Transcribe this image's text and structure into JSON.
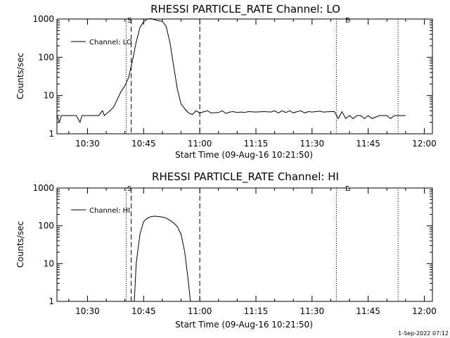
{
  "chart_data": [
    {
      "type": "line",
      "title": "RHESSI PARTICLE_RATE Channel: LO",
      "xlabel": "Start Time (09-Aug-16 10:21:50)",
      "ylabel": "Counts/sec",
      "yscale": "log",
      "xlim": [
        "10:21:50",
        "12:02:10"
      ],
      "ylim": [
        1,
        1000
      ],
      "xticks": [
        "10:30",
        "10:45",
        "11:00",
        "11:15",
        "11:30",
        "11:45",
        "12:00"
      ],
      "yticks": [
        "1",
        "10",
        "100",
        "1000"
      ],
      "legend": {
        "position": "top-left",
        "entries": [
          "Channel: LO"
        ]
      },
      "markers": [
        {
          "label": "S",
          "time": "10:40:20",
          "style": "dotted"
        },
        {
          "label": "",
          "time": "10:41:40",
          "style": "dashed"
        },
        {
          "label": "",
          "time": "11:00:00",
          "style": "dashed"
        },
        {
          "label": "E",
          "time": "11:36:30",
          "style": "dotted"
        },
        {
          "label": "",
          "time": "11:53:00",
          "style": "dotted"
        }
      ],
      "series": [
        {
          "x": [
            "10:21:50",
            "10:22:30",
            "10:23:00",
            "10:25:00",
            "10:27:00",
            "10:28:00",
            "10:28:30",
            "10:31:00",
            "10:31:30",
            "10:33:00",
            "10:34:00",
            "10:34:30",
            "10:36:00",
            "10:37:00",
            "10:38:00",
            "10:39:00",
            "10:40:00",
            "10:41:00",
            "10:42:00",
            "10:43:00",
            "10:44:00",
            "10:45:00",
            "10:46:00",
            "10:47:00",
            "10:48:00",
            "10:49:00",
            "10:50:00",
            "10:51:00",
            "10:52:00",
            "10:53:00",
            "10:54:00",
            "10:55:00",
            "10:56:00",
            "10:57:00",
            "10:58:00",
            "10:59:00",
            "11:00:00",
            "11:02:00",
            "11:03:00",
            "11:05:00",
            "11:06:00",
            "11:07:00",
            "11:08:00",
            "11:09:00",
            "11:10:00",
            "11:11:00",
            "11:12:00",
            "11:13:00",
            "11:15:00",
            "11:17:00",
            "11:19:00",
            "11:20:00",
            "11:21:00",
            "11:22:00",
            "11:23:00",
            "11:24:00",
            "11:25:00",
            "11:26:00",
            "11:27:00",
            "11:28:00",
            "11:29:00",
            "11:30:00",
            "11:31:00",
            "11:32:00",
            "11:33:00",
            "11:35:00",
            "11:36:00",
            "11:37:00",
            "11:38:00",
            "11:39:00",
            "11:40:00",
            "11:41:00",
            "11:42:00",
            "11:43:00",
            "11:44:00",
            "11:45:00",
            "11:46:00",
            "11:48:00",
            "11:50:00",
            "11:51:00",
            "11:52:00",
            "11:53:00",
            "11:55:00"
          ],
          "values": [
            3,
            2,
            3,
            3,
            3,
            2,
            3,
            3,
            3,
            3,
            4,
            3,
            4,
            5,
            8,
            13,
            18,
            30,
            80,
            250,
            600,
            850,
            1000,
            1020,
            950,
            900,
            870,
            650,
            250,
            60,
            15,
            6,
            4.5,
            3.5,
            3.2,
            4,
            3.5,
            4,
            3.5,
            3.6,
            4,
            3.4,
            3.7,
            3.8,
            3.6,
            3.7,
            3.6,
            3.8,
            3.7,
            3.8,
            3.7,
            4,
            3.5,
            4,
            3.6,
            4,
            3.5,
            3.8,
            4,
            3.5,
            3.8,
            3.7,
            3.8,
            3.9,
            3.7,
            3.8,
            3.8,
            2.5,
            3.8,
            2.5,
            3,
            2.5,
            3,
            3,
            2.5,
            3,
            2.5,
            3,
            3,
            2.5,
            3,
            3,
            3
          ]
        }
      ]
    },
    {
      "type": "line",
      "title": "RHESSI PARTICLE_RATE Channel: HI",
      "xlabel": "Start Time (09-Aug-16 10:21:50)",
      "ylabel": "Counts/sec",
      "yscale": "log",
      "xlim": [
        "10:21:50",
        "12:02:10"
      ],
      "ylim": [
        1,
        1000
      ],
      "xticks": [
        "10:30",
        "10:45",
        "11:00",
        "11:15",
        "11:30",
        "11:45",
        "12:00"
      ],
      "yticks": [
        "1",
        "10",
        "100",
        "1000"
      ],
      "legend": {
        "position": "top-left",
        "entries": [
          "Channel: HI"
        ]
      },
      "markers": [
        {
          "label": "S",
          "time": "10:40:20",
          "style": "dotted"
        },
        {
          "label": "",
          "time": "10:41:40",
          "style": "dashed"
        },
        {
          "label": "",
          "time": "11:00:00",
          "style": "dashed"
        },
        {
          "label": "E",
          "time": "11:36:30",
          "style": "dotted"
        },
        {
          "label": "",
          "time": "11:53:00",
          "style": "dotted"
        }
      ],
      "series": [
        {
          "x": [
            "10:42:30",
            "10:43:00",
            "10:44:00",
            "10:45:00",
            "10:46:00",
            "10:47:00",
            "10:48:00",
            "10:49:00",
            "10:50:00",
            "10:51:00",
            "10:52:00",
            "10:53:00",
            "10:54:00",
            "10:55:00",
            "10:56:00",
            "10:57:00",
            "10:57:30"
          ],
          "values": [
            1,
            10,
            60,
            130,
            160,
            175,
            180,
            175,
            170,
            160,
            140,
            120,
            95,
            60,
            20,
            3,
            1
          ]
        }
      ]
    }
  ],
  "footer": {
    "date": "1-Sep-2022 07:12"
  }
}
